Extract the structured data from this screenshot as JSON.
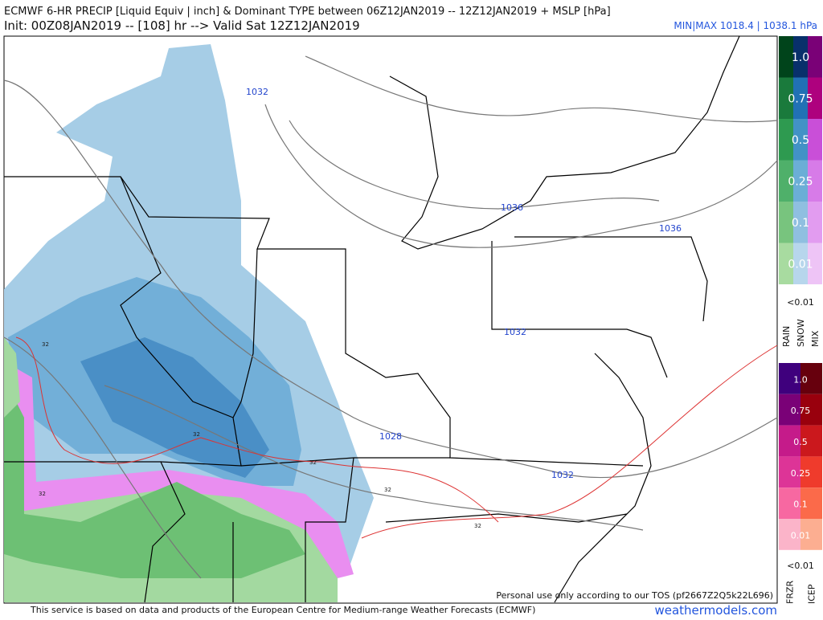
{
  "header": {
    "title": "ECMWF 6-HR PRECIP [Liquid Equiv | inch] & Dominant TYPE between 06Z12JAN2019 -- 12Z12JAN2019 + MSLP [hPa]",
    "subtitle": "Init: 00Z08JAN2019 -- [108] hr --> Valid Sat 12Z12JAN2019",
    "minmax": "MIN|MAX 1018.4 | 1038.1 hPa"
  },
  "map": {
    "isobars": [
      "1032",
      "1036",
      "1036",
      "1032",
      "1028",
      "1032"
    ],
    "freezing_labels": [
      "32",
      "32",
      "32",
      "32",
      "32",
      "32"
    ]
  },
  "legend_top": {
    "levels": [
      "1.0",
      "0.75",
      "0.5",
      "0.25",
      "0.1",
      "0.01"
    ],
    "below": "<0.01",
    "types": [
      "RAIN",
      "SNOW",
      "MIX"
    ],
    "colors": [
      [
        "#00441b",
        "#08306b",
        "#7a0177"
      ],
      [
        "#1a7a3c",
        "#2171b5",
        "#ae017e"
      ],
      [
        "#2e9a50",
        "#4292c6",
        "#c94fd8"
      ],
      [
        "#4fb06a",
        "#6baed6",
        "#d77be8"
      ],
      [
        "#78c47e",
        "#8fbfe0",
        "#e29cf0"
      ],
      [
        "#a8dba0",
        "#b7d6ec",
        "#eec4f6"
      ]
    ]
  },
  "legend_bottom": {
    "levels": [
      "1.0",
      "0.75",
      "0.5",
      "0.25",
      "0.1",
      "0.01"
    ],
    "below": "<0.01",
    "types": [
      "FRZR",
      "ICEP"
    ],
    "colors": [
      [
        "#3f007d",
        "#67000d"
      ],
      [
        "#7a0177",
        "#99000d"
      ],
      [
        "#c51b8a",
        "#cb181d"
      ],
      [
        "#dd3497",
        "#ef3b2c"
      ],
      [
        "#f768a1",
        "#fb6a4a"
      ],
      [
        "#fbb4c9",
        "#fcae91"
      ]
    ]
  },
  "footer": {
    "tos": "Personal use only according to our TOS (pf2667Z2Q5k22L696)",
    "source": "This service is based on data and products of the European Centre for Medium-range Weather Forecasts (ECMWF)",
    "site": "weathermodels.com"
  }
}
